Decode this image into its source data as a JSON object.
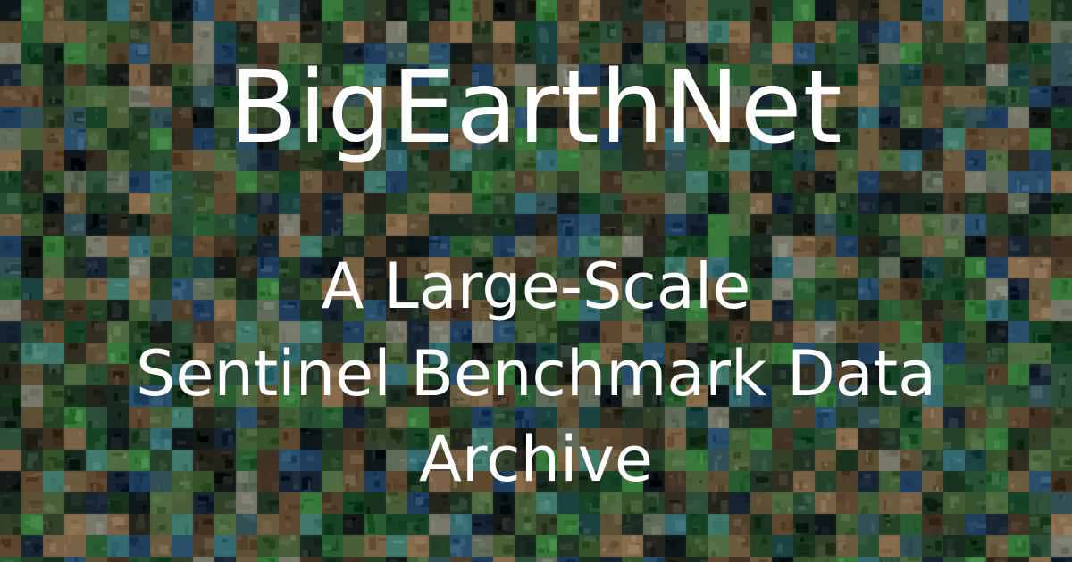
{
  "banner": {
    "title": "BigEarthNet",
    "subtitle_lines": [
      "A Large-Scale",
      "Sentinel Benchmark Data",
      "Archive"
    ],
    "background_image": "mosaic of satellite image tiles",
    "tile_palette": [
      "#1d3a22",
      "#2a4a2c",
      "#3d5e34",
      "#24392a",
      "#4b6a3d",
      "#2f5a3a",
      "#1c2f24",
      "#5a7a4a",
      "#3a4a30",
      "#6a5a3c",
      "#7a6848",
      "#8a7050",
      "#5c4a34",
      "#4a3a2a",
      "#2a2a22",
      "#3a3426",
      "#1a2a3a",
      "#24466a",
      "#2f5a7a",
      "#3e7a82",
      "#4a8a7a",
      "#1f4a4a",
      "#0f1a1c",
      "#161e1a",
      "#6e7a66",
      "#8a8a7a",
      "#2e6a3a",
      "#3f8a44",
      "#1a4a2a",
      "#556b3f",
      "#29492f",
      "#345a42",
      "#6b5236",
      "#9a7c58",
      "#3a5a60"
    ],
    "text_color": "#ffffff"
  }
}
